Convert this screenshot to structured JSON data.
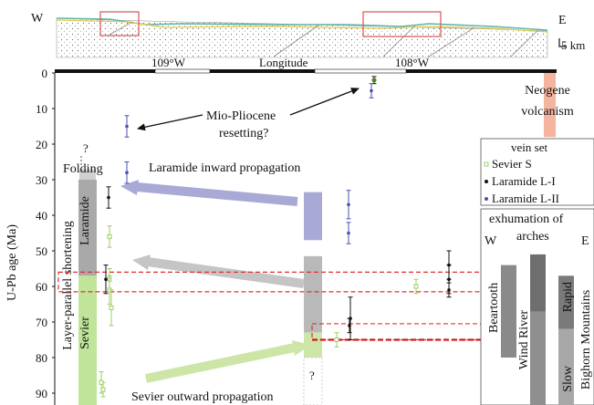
{
  "chart_data": {
    "type": "scatter",
    "ylabel": "U-Pb age (Ma)",
    "xlabel": "Longitude",
    "y_ticks": [
      0,
      10,
      20,
      30,
      40,
      50,
      60,
      70,
      80,
      90
    ],
    "ylim": [
      0,
      95
    ],
    "x_ticks": [
      "109°W",
      "108°W"
    ],
    "section": {
      "west_label": "W",
      "east_label": "E",
      "scale_label": "5 km"
    },
    "legend": {
      "title": "vein set",
      "entries": [
        {
          "label": "Sevier S",
          "color": "#9ccc65"
        },
        {
          "label": "Laramide L-I",
          "color": "#111111"
        },
        {
          "label": "Laramide L-II",
          "color": "#4a4fb0"
        }
      ]
    },
    "exhumation": {
      "title": "exhumation of arches",
      "west": "W",
      "east": "E",
      "bars": [
        {
          "label": "Beartooth",
          "top": 54,
          "bottom": 80,
          "color": "#8a8a8a"
        },
        {
          "label": "Wind River",
          "top": 51,
          "bottom": 95,
          "color": "#6e6e6e"
        },
        {
          "label": "Rapid",
          "top": 57,
          "bottom": 72,
          "color": "#7a7a7a"
        },
        {
          "label": "Slow",
          "top": 72,
          "bottom": 95,
          "color": "#a8a8a8"
        },
        {
          "label": "Bighorn Mountains",
          "top": 57,
          "bottom": 95,
          "color": "#7a7a7a"
        }
      ]
    },
    "phases": [
      {
        "label": "Laramide",
        "top": 30,
        "bottom": 57,
        "color": "#a9a9a9"
      },
      {
        "label": "Sevier",
        "top": 57,
        "bottom": 95,
        "color": "#bfe49a"
      }
    ],
    "texts": {
      "folding": "Folding",
      "question": "?",
      "layer_parallel": "Layer-parallel shortening",
      "mio_pliocene": "Mio-Pliocene resetting?",
      "neogene": "Neogene volcanism",
      "laramide_inward": "Laramide inward propagation",
      "sevier_outward": "Sevier outward propagation"
    },
    "ranges": [
      {
        "name": "Laramide L-II",
        "top": 33.5,
        "bottom": 47,
        "color": "#a9a9d6"
      },
      {
        "name": "Laramide L-I",
        "top": 51.5,
        "bottom": 73,
        "color": "#b9b9b9"
      },
      {
        "name": "Sevier S",
        "top": 73,
        "bottom": 80,
        "color": "#cde6a8"
      }
    ],
    "neogene_range": {
      "top": 0,
      "bottom": 18,
      "color": "#f3b4a0"
    },
    "series": [
      {
        "name": "Sevier S",
        "points": [
          {
            "y": 89,
            "err": 2
          },
          {
            "y": 87,
            "err": 3
          },
          {
            "y": 46,
            "err": 3
          },
          {
            "y": 58,
            "err": 3
          },
          {
            "y": 61,
            "err": 4
          },
          {
            "y": 66,
            "err": 5
          },
          {
            "y": 75,
            "err": 2
          },
          {
            "y": 60,
            "err": 2
          }
        ]
      },
      {
        "name": "Laramide L-I",
        "points": [
          {
            "y": 35,
            "err": 3
          },
          {
            "y": 58,
            "err": 4
          },
          {
            "y": 71,
            "err": 2
          },
          {
            "y": 69,
            "err": 6
          },
          {
            "y": 54,
            "err": 4
          },
          {
            "y": 58,
            "err": 4
          },
          {
            "y": 61,
            "err": 2
          },
          {
            "y": 2,
            "err": 1
          }
        ]
      },
      {
        "name": "Laramide L-II",
        "points": [
          {
            "y": 15,
            "err": 3
          },
          {
            "y": 28,
            "err": 3
          },
          {
            "y": 37,
            "err": 4
          },
          {
            "y": 45,
            "err": 3
          },
          {
            "y": 5,
            "err": 2
          }
        ]
      }
    ],
    "age_windows": [
      [
        56,
        61.5
      ],
      [
        70.5,
        75
      ]
    ]
  }
}
